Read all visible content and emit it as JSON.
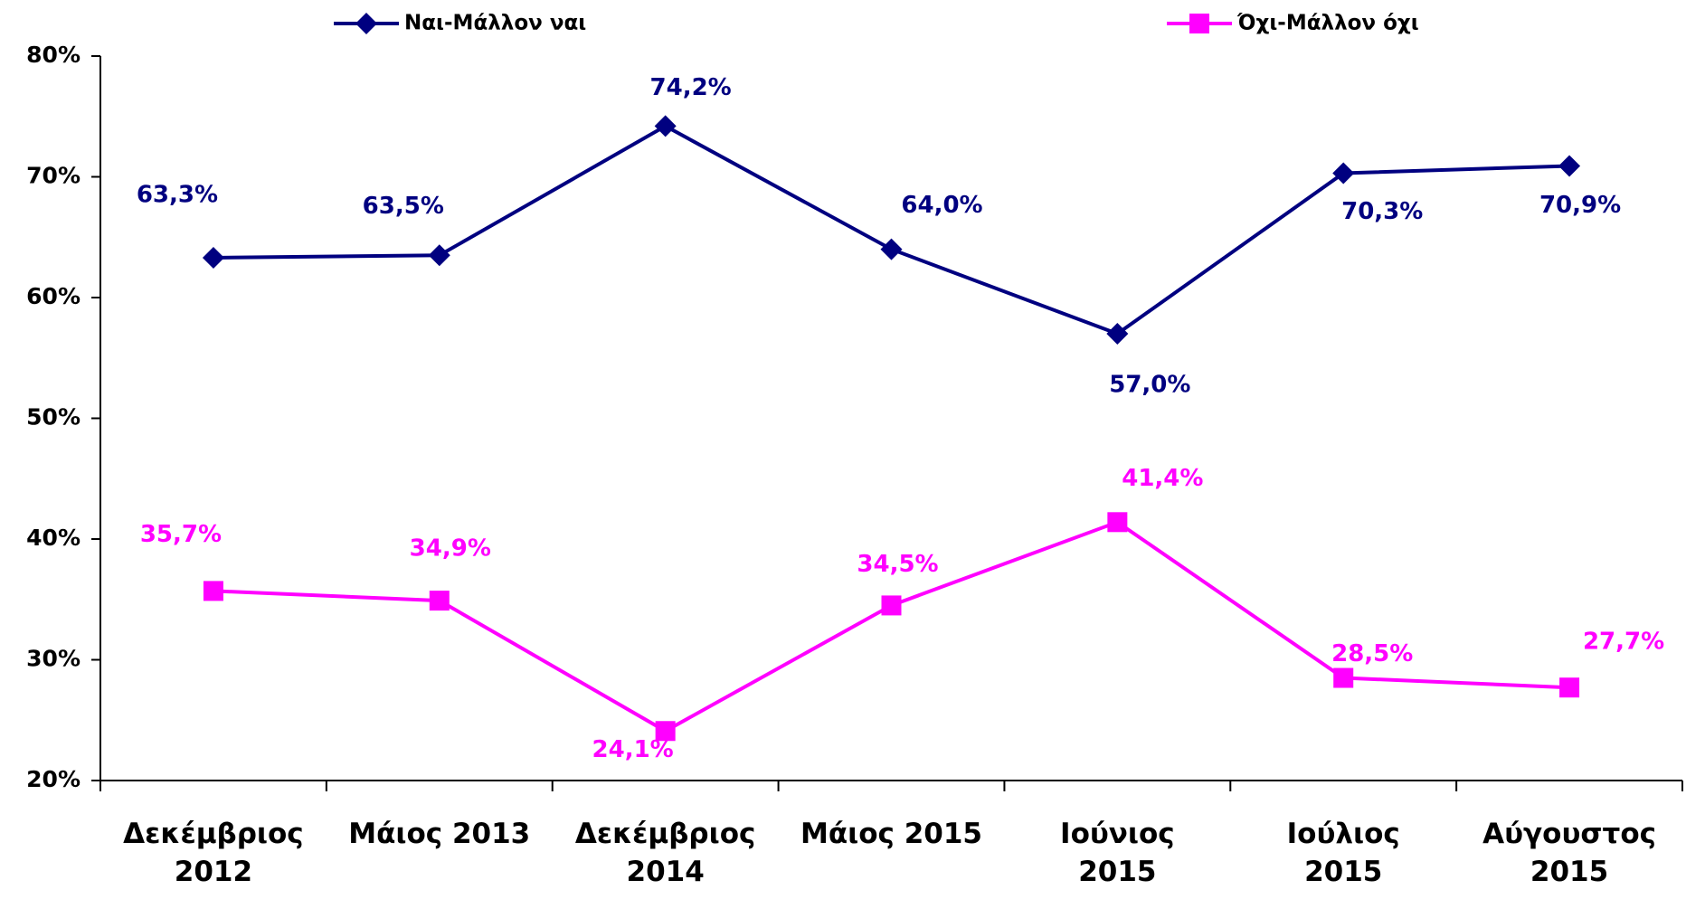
{
  "chart_data": {
    "type": "line",
    "categories": [
      "Δεκέμβριος\n2012",
      "Μάιος 2013",
      "Δεκέμβριος\n2014",
      "Μάιος 2015",
      "Ιούνιος\n2015",
      "Ιούλιος\n2015",
      "Αύγουστος\n2015"
    ],
    "series": [
      {
        "name": "Ναι-Μάλλον ναι",
        "color": "#000080",
        "marker": "diamond",
        "values": [
          63.3,
          63.5,
          74.2,
          64.0,
          57.0,
          70.3,
          70.9
        ],
        "value_labels": [
          "63,3%",
          "63,5%",
          "74,2%",
          "64,0%",
          "57,0%",
          "70,3%",
          "70,9%"
        ]
      },
      {
        "name": "Όχι-Μάλλον όχι",
        "color": "#ff00ff",
        "marker": "square",
        "values": [
          35.7,
          34.9,
          24.1,
          34.5,
          41.4,
          28.5,
          27.7
        ],
        "value_labels": [
          "35,7%",
          "34,9%",
          "24,1%",
          "34,5%",
          "41,4%",
          "28,5%",
          "27,7%"
        ]
      }
    ],
    "ylim": [
      20,
      80
    ],
    "yticks": [
      {
        "value": 20,
        "label": "20%"
      },
      {
        "value": 30,
        "label": "30%"
      },
      {
        "value": 40,
        "label": "40%"
      },
      {
        "value": 50,
        "label": "50%"
      },
      {
        "value": 60,
        "label": "60%"
      },
      {
        "value": 70,
        "label": "70%"
      },
      {
        "value": 80,
        "label": "80%"
      }
    ],
    "grid": false,
    "legend": "top"
  }
}
